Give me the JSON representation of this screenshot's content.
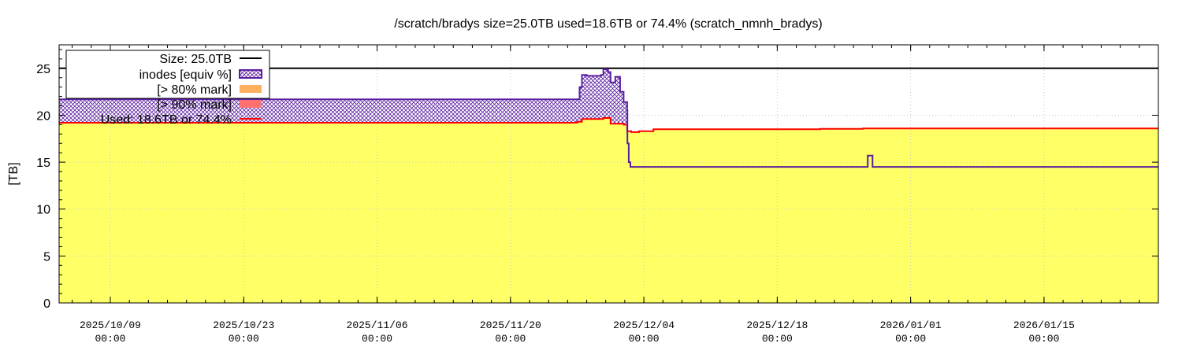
{
  "chart_data": {
    "type": "area",
    "title": "/scratch/bradys size=25.0TB used=18.6TB or 74.4% (scratch_nmnh_bradys)",
    "ylabel": "[TB]",
    "xlabel": "",
    "ylim": [
      0,
      27.5
    ],
    "xlim": [
      "2025-10-03 15:00",
      "2026-01-27 00:00"
    ],
    "yticks": [
      0,
      5,
      10,
      15,
      20,
      25
    ],
    "xticks": [
      {
        "date": "2025-10-09 00:00",
        "label1": "2025/10/09",
        "label2": "00:00"
      },
      {
        "date": "2025-10-23 00:00",
        "label1": "2025/10/23",
        "label2": "00:00"
      },
      {
        "date": "2025-11-06 00:00",
        "label1": "2025/11/06",
        "label2": "00:00"
      },
      {
        "date": "2025-11-20 00:00",
        "label1": "2025/11/20",
        "label2": "00:00"
      },
      {
        "date": "2025-12-04 00:00",
        "label1": "2025/12/04",
        "label2": "00:00"
      },
      {
        "date": "2025-12-18 00:00",
        "label1": "2025/12/18",
        "label2": "00:00"
      },
      {
        "date": "2026-01-01 00:00",
        "label1": "2026/01/01",
        "label2": "00:00"
      },
      {
        "date": "2026-01-15 00:00",
        "label1": "2026/01/15",
        "label2": "00:00"
      }
    ],
    "grid": true,
    "legend_position": "top-left",
    "legend": [
      {
        "key": "size",
        "label": "Size: 25.0TB"
      },
      {
        "key": "inodes",
        "label": "inodes [equiv %]"
      },
      {
        "key": "mark80",
        "label": "[> 80% mark]"
      },
      {
        "key": "mark90",
        "label": "[> 90% mark]"
      },
      {
        "key": "used",
        "label": "Used: 18.6TB or 74.4%"
      }
    ],
    "colors": {
      "size": "#000000",
      "used_line": "#ff0000",
      "used_fill": "#ffff66",
      "inodes": "#5a1fa0",
      "mark80": "#ffb060",
      "mark90": "#ff7070"
    },
    "series": [
      {
        "name": "Size: 25.0TB",
        "values": [
          [
            "2025-10-03 15:00",
            25.0
          ],
          [
            "2026-01-27 00:00",
            25.0
          ]
        ]
      },
      {
        "name": "Used: 18.6TB or 74.4%",
        "values": [
          [
            "2025-10-03 15:00",
            19.2
          ],
          [
            "2025-11-27 00:00",
            19.3
          ],
          [
            "2025-11-27 12:00",
            19.6
          ],
          [
            "2025-11-29 18:00",
            19.7
          ],
          [
            "2025-11-30 12:00",
            19.1
          ],
          [
            "2025-12-01 21:00",
            19.0
          ],
          [
            "2025-12-02 06:00",
            18.3
          ],
          [
            "2025-12-02 16:00",
            18.2
          ],
          [
            "2025-12-03 12:00",
            18.3
          ],
          [
            "2025-12-05 00:00",
            18.5
          ],
          [
            "2025-12-08 00:00",
            18.5
          ],
          [
            "2025-12-22 00:00",
            18.5
          ],
          [
            "2025-12-22 12:00",
            18.55
          ],
          [
            "2025-12-27 00:00",
            18.6
          ],
          [
            "2026-01-27 00:00",
            18.6
          ]
        ]
      },
      {
        "name": "inodes [equiv %]",
        "values": [
          [
            "2025-10-03 15:00",
            21.7
          ],
          [
            "2025-11-27 00:00",
            21.7
          ],
          [
            "2025-11-27 06:00",
            23.0
          ],
          [
            "2025-11-27 12:00",
            24.3
          ],
          [
            "2025-11-28 00:00",
            24.2
          ],
          [
            "2025-11-29 12:00",
            24.3
          ],
          [
            "2025-11-29 18:00",
            24.9
          ],
          [
            "2025-11-30 06:00",
            24.6
          ],
          [
            "2025-11-30 12:00",
            23.5
          ],
          [
            "2025-12-01 00:00",
            24.1
          ],
          [
            "2025-12-01 12:00",
            22.5
          ],
          [
            "2025-12-01 21:00",
            21.4
          ],
          [
            "2025-12-02 06:00",
            20.5
          ],
          [
            "2025-12-02 06:30",
            17.0
          ],
          [
            "2025-12-02 10:00",
            15.0
          ],
          [
            "2025-12-02 14:00",
            14.5
          ],
          [
            "2025-12-27 00:00",
            14.5
          ],
          [
            "2025-12-27 12:00",
            15.7
          ],
          [
            "2025-12-28 00:00",
            14.5
          ],
          [
            "2026-01-27 00:00",
            14.5
          ]
        ]
      }
    ]
  }
}
